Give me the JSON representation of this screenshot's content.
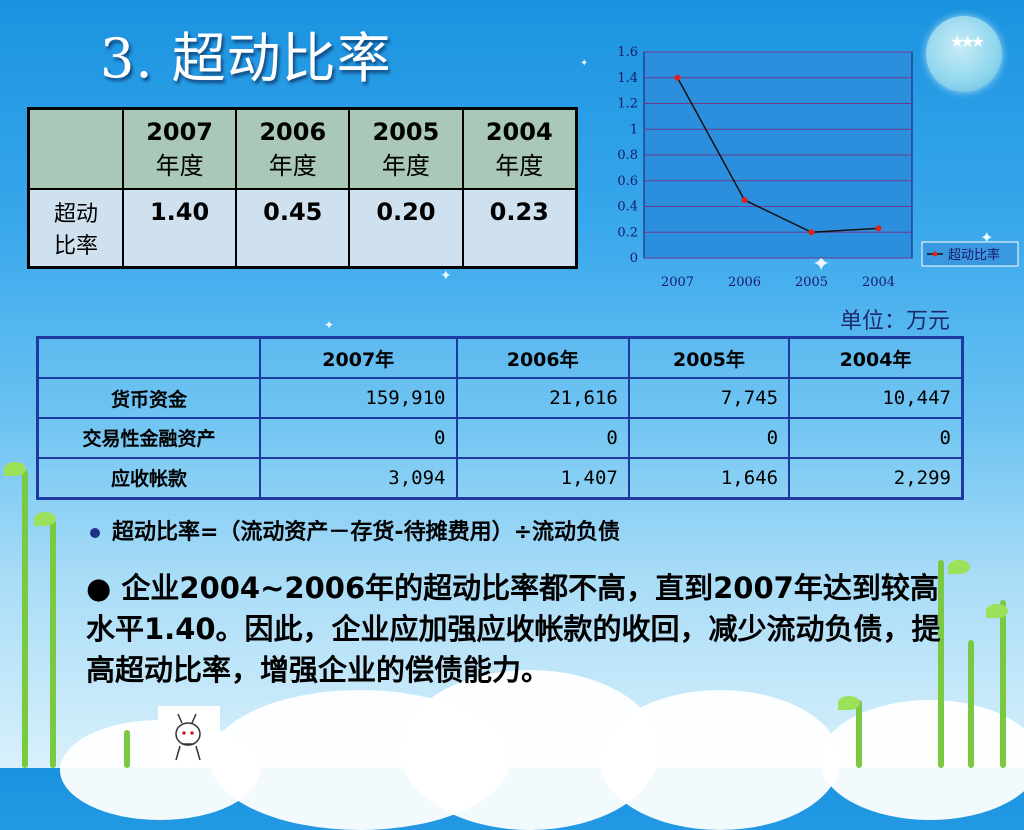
{
  "title": "3. 超动比率",
  "ratio_table": {
    "headers": [
      {
        "year": "2007",
        "label": "年度"
      },
      {
        "year": "2006",
        "label": "年度"
      },
      {
        "year": "2005",
        "label": "年度"
      },
      {
        "year": "2004",
        "label": "年度"
      }
    ],
    "row_label_line1": "超动",
    "row_label_line2": "比率",
    "values": [
      "1.40",
      "0.45",
      "0.20",
      "0.23"
    ]
  },
  "chart_data": {
    "type": "line",
    "categories": [
      "2007",
      "2006",
      "2005",
      "2004"
    ],
    "series": [
      {
        "name": "超动比率",
        "values": [
          1.4,
          0.45,
          0.2,
          0.23
        ],
        "color": "#e0201a"
      }
    ],
    "yticks": [
      "0",
      "0.2",
      "0.4",
      "0.6",
      "0.8",
      "1",
      "1.2",
      "1.4",
      "1.6"
    ],
    "ylim": [
      0,
      1.6
    ],
    "grid": true,
    "legend": "right",
    "line_color": "#111111",
    "plot_bg": "#2b8fde",
    "grid_color": "#6a3a8f"
  },
  "unit_label": "单位：万元",
  "fin_table": {
    "columns": [
      "",
      "2007年",
      "2006年",
      "2005年",
      "2004年"
    ],
    "rows": [
      {
        "name": "货币资金",
        "values": [
          "159,910",
          "21,616",
          "7,745",
          "10,447"
        ]
      },
      {
        "name": "交易性金融资产",
        "values": [
          "0",
          "0",
          "0",
          "0"
        ]
      },
      {
        "name": "应收帐款",
        "values": [
          "3,094",
          "1,407",
          "1,646",
          "2,299"
        ]
      }
    ]
  },
  "bullet1": "超动比率=（流动资产－存货-待摊费用）÷流动负债",
  "bullet2": "● 企业2004~2006年的超动比率都不高，直到2007年达到较高水平1.40。因此，企业应加强应收帐款的收回，减少流动负债，提高超动比率，增强企业的偿债能力。"
}
